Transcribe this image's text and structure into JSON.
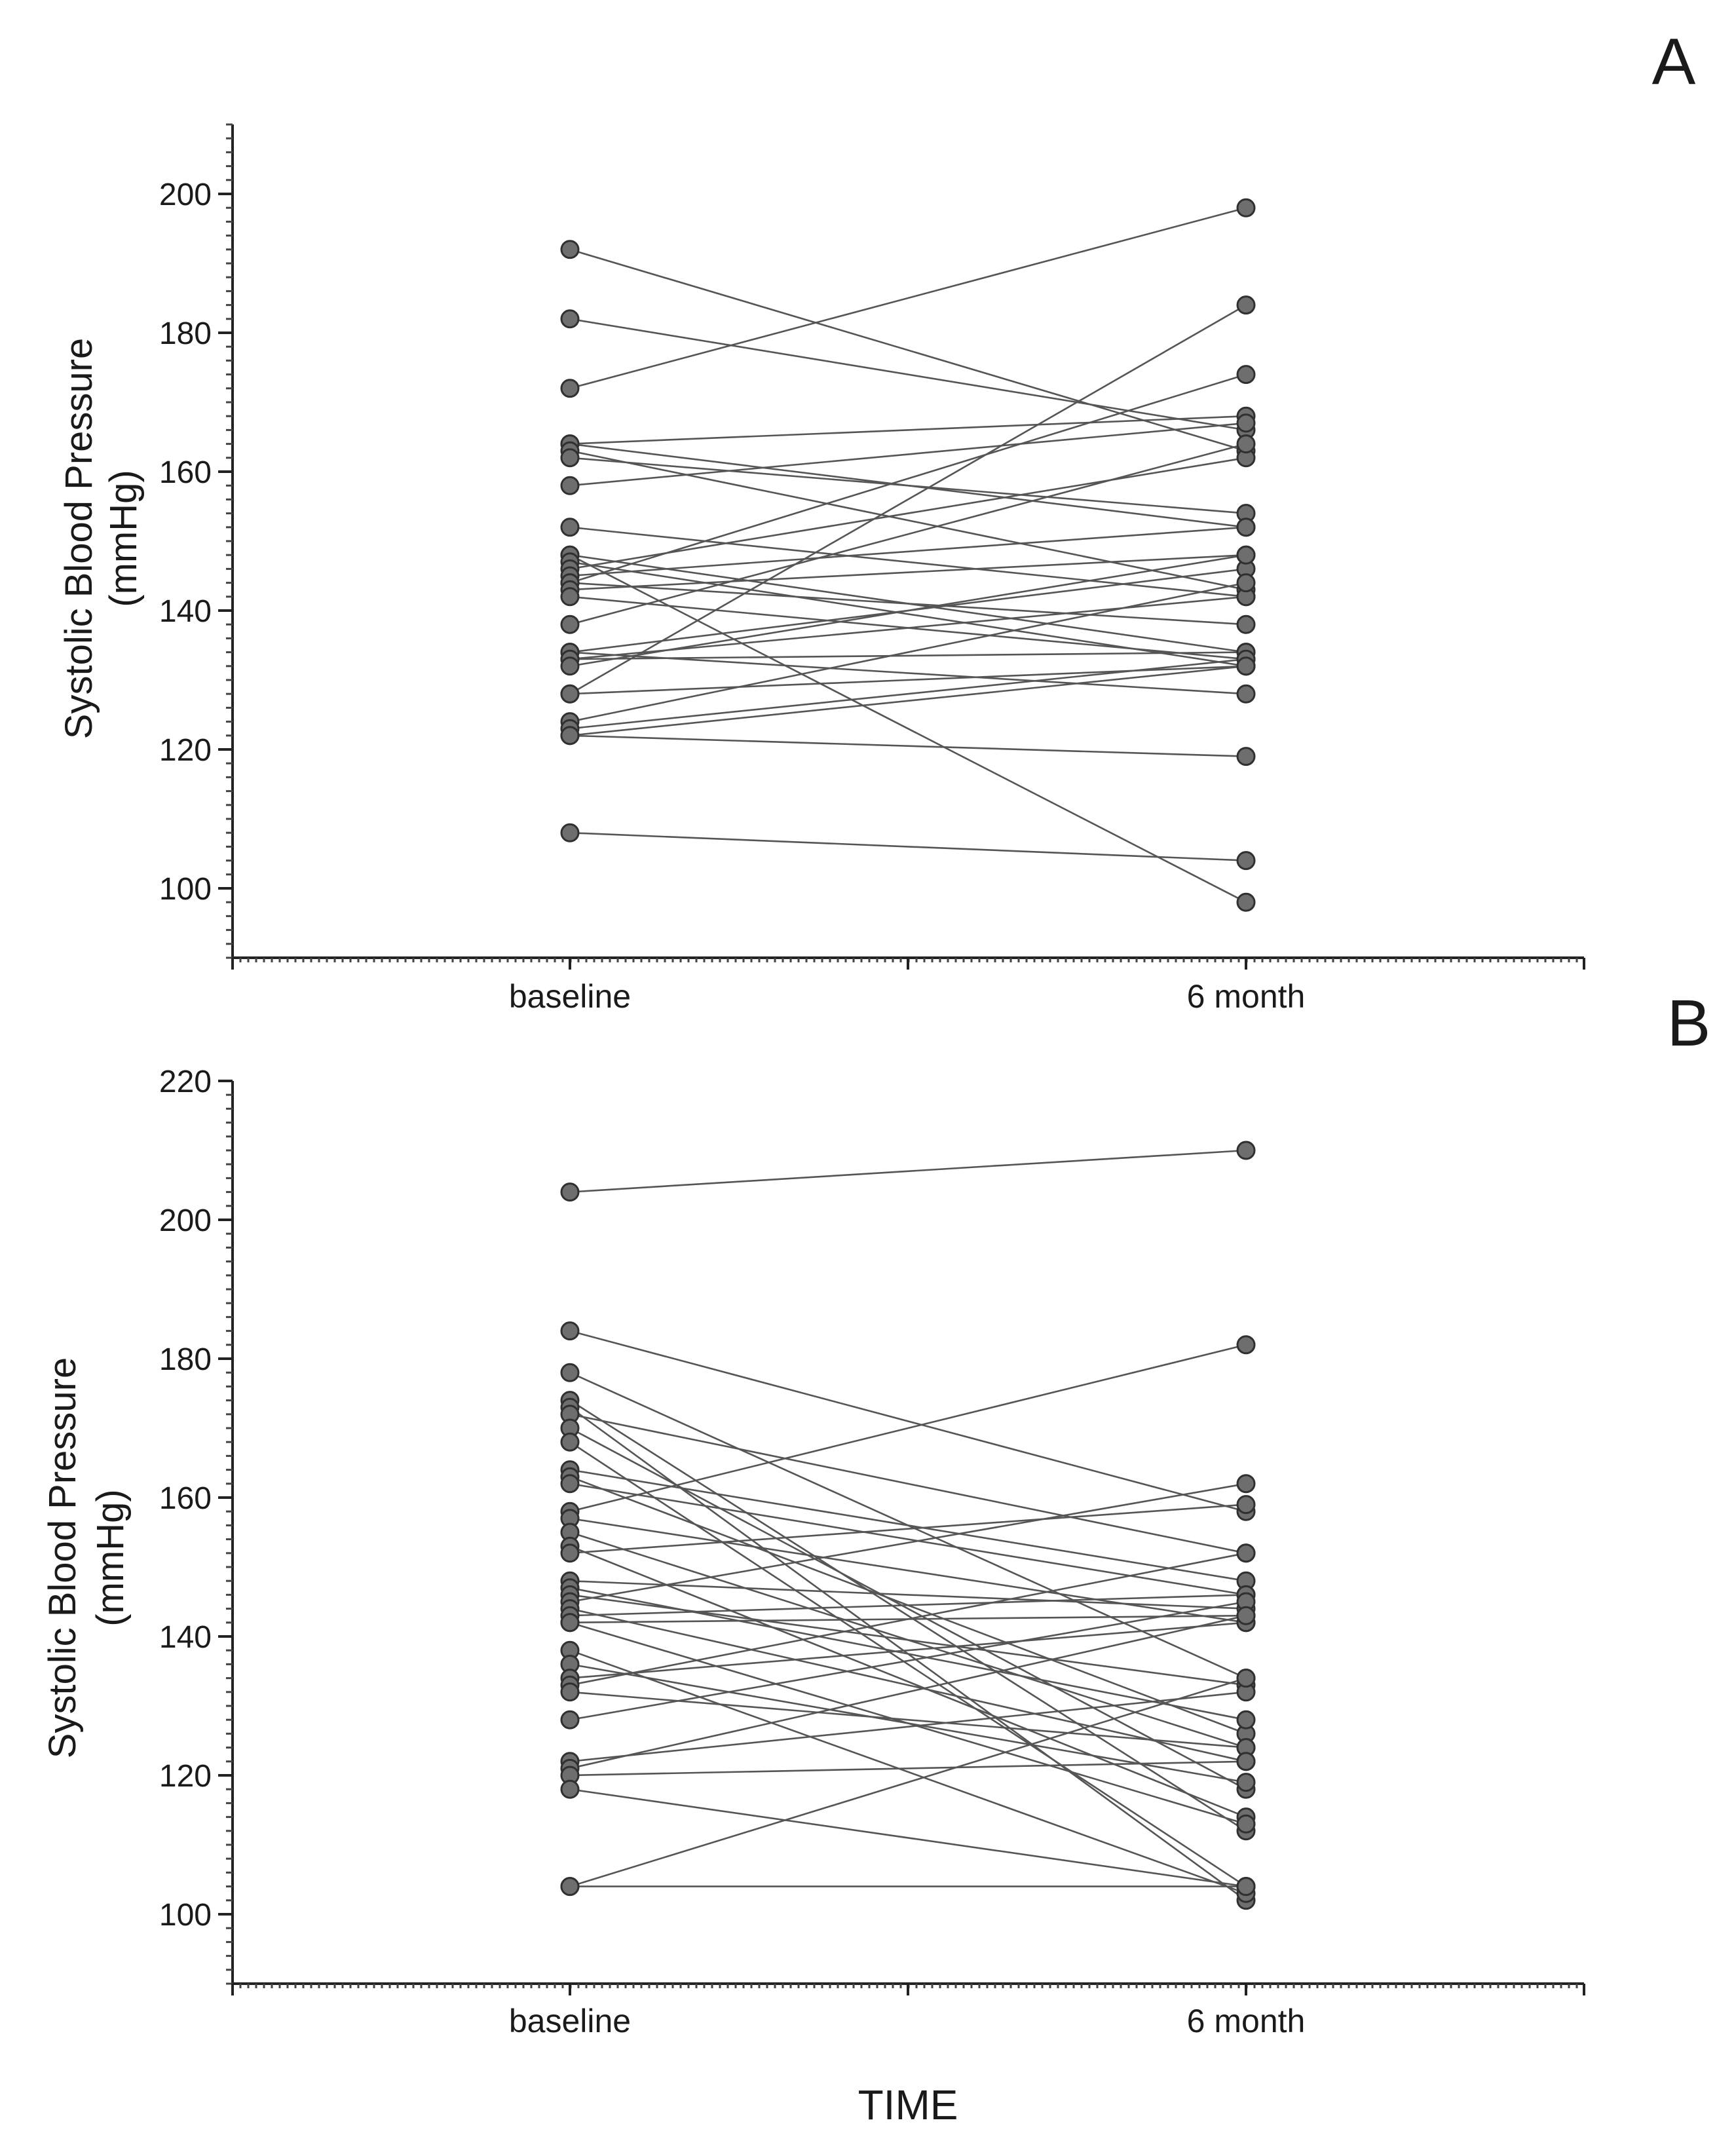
{
  "chart_data": [
    {
      "type": "line",
      "panel": "A",
      "title": "",
      "xlabel": "",
      "ylabel": [
        "Systolic Blood Pressure",
        "(mmHg)"
      ],
      "categories": [
        "baseline",
        "6 month"
      ],
      "ylim": [
        90,
        210
      ],
      "yticks": [
        100,
        120,
        140,
        160,
        180,
        200
      ],
      "grid": false,
      "legend": "none",
      "series": [
        {
          "name": "1",
          "values": [
            192,
            163
          ]
        },
        {
          "name": "2",
          "values": [
            182,
            166
          ]
        },
        {
          "name": "3",
          "values": [
            172,
            198
          ]
        },
        {
          "name": "4",
          "values": [
            164,
            168
          ]
        },
        {
          "name": "5",
          "values": [
            164,
            152
          ]
        },
        {
          "name": "6",
          "values": [
            163,
            143
          ]
        },
        {
          "name": "7",
          "values": [
            162,
            154
          ]
        },
        {
          "name": "8",
          "values": [
            158,
            167
          ]
        },
        {
          "name": "9",
          "values": [
            152,
            142
          ]
        },
        {
          "name": "10",
          "values": [
            148,
            134
          ]
        },
        {
          "name": "11",
          "values": [
            148,
            98
          ]
        },
        {
          "name": "12",
          "values": [
            147,
            132
          ]
        },
        {
          "name": "13",
          "values": [
            146,
            162
          ]
        },
        {
          "name": "14",
          "values": [
            145,
            152
          ]
        },
        {
          "name": "15",
          "values": [
            144,
            174
          ]
        },
        {
          "name": "16",
          "values": [
            144,
            138
          ]
        },
        {
          "name": "17",
          "values": [
            143,
            148
          ]
        },
        {
          "name": "18",
          "values": [
            142,
            133
          ]
        },
        {
          "name": "19",
          "values": [
            138,
            164
          ]
        },
        {
          "name": "20",
          "values": [
            134,
            146
          ]
        },
        {
          "name": "21",
          "values": [
            134,
            128
          ]
        },
        {
          "name": "22",
          "values": [
            133,
            142
          ]
        },
        {
          "name": "23",
          "values": [
            133,
            134
          ]
        },
        {
          "name": "24",
          "values": [
            132,
            148
          ]
        },
        {
          "name": "25",
          "values": [
            128,
            184
          ]
        },
        {
          "name": "26",
          "values": [
            128,
            132
          ]
        },
        {
          "name": "27",
          "values": [
            124,
            144
          ]
        },
        {
          "name": "28",
          "values": [
            123,
            133
          ]
        },
        {
          "name": "29",
          "values": [
            122,
            132
          ]
        },
        {
          "name": "30",
          "values": [
            122,
            119
          ]
        },
        {
          "name": "31",
          "values": [
            108,
            104
          ]
        }
      ]
    },
    {
      "type": "line",
      "panel": "B",
      "title": "",
      "xlabel": "TIME",
      "ylabel": [
        "Systolic Blood Pressure",
        "(mmHg)"
      ],
      "categories": [
        "baseline",
        "6 month"
      ],
      "ylim": [
        90,
        220
      ],
      "yticks": [
        100,
        120,
        140,
        160,
        180,
        200,
        220
      ],
      "grid": false,
      "legend": "none",
      "series": [
        {
          "name": "1",
          "values": [
            204,
            210
          ]
        },
        {
          "name": "2",
          "values": [
            184,
            158
          ]
        },
        {
          "name": "3",
          "values": [
            178,
            134
          ]
        },
        {
          "name": "4",
          "values": [
            174,
            112
          ]
        },
        {
          "name": "5",
          "values": [
            173,
            102
          ]
        },
        {
          "name": "6",
          "values": [
            172,
            152
          ]
        },
        {
          "name": "7",
          "values": [
            170,
            118
          ]
        },
        {
          "name": "8",
          "values": [
            168,
            104
          ]
        },
        {
          "name": "9",
          "values": [
            164,
            148
          ]
        },
        {
          "name": "10",
          "values": [
            163,
            126
          ]
        },
        {
          "name": "11",
          "values": [
            162,
            146
          ]
        },
        {
          "name": "12",
          "values": [
            158,
            182
          ]
        },
        {
          "name": "13",
          "values": [
            157,
            142
          ]
        },
        {
          "name": "14",
          "values": [
            155,
            124
          ]
        },
        {
          "name": "15",
          "values": [
            153,
            114
          ]
        },
        {
          "name": "16",
          "values": [
            152,
            159
          ]
        },
        {
          "name": "17",
          "values": [
            148,
            144
          ]
        },
        {
          "name": "18",
          "values": [
            147,
            128
          ]
        },
        {
          "name": "19",
          "values": [
            146,
            133
          ]
        },
        {
          "name": "20",
          "values": [
            145,
            162
          ]
        },
        {
          "name": "21",
          "values": [
            144,
            122
          ]
        },
        {
          "name": "22",
          "values": [
            143,
            146
          ]
        },
        {
          "name": "23",
          "values": [
            142,
            113
          ]
        },
        {
          "name": "24",
          "values": [
            142,
            143
          ]
        },
        {
          "name": "25",
          "values": [
            138,
            103
          ]
        },
        {
          "name": "26",
          "values": [
            136,
            119
          ]
        },
        {
          "name": "27",
          "values": [
            134,
            142
          ]
        },
        {
          "name": "28",
          "values": [
            133,
            152
          ]
        },
        {
          "name": "29",
          "values": [
            132,
            124
          ]
        },
        {
          "name": "30",
          "values": [
            128,
            145
          ]
        },
        {
          "name": "31",
          "values": [
            122,
            132
          ]
        },
        {
          "name": "32",
          "values": [
            121,
            143
          ]
        },
        {
          "name": "33",
          "values": [
            120,
            122
          ]
        },
        {
          "name": "34",
          "values": [
            118,
            104
          ]
        },
        {
          "name": "35",
          "values": [
            104,
            134
          ]
        },
        {
          "name": "36",
          "values": [
            104,
            104
          ]
        }
      ]
    }
  ],
  "panel_labels": {
    "a": "A",
    "b": "B"
  }
}
